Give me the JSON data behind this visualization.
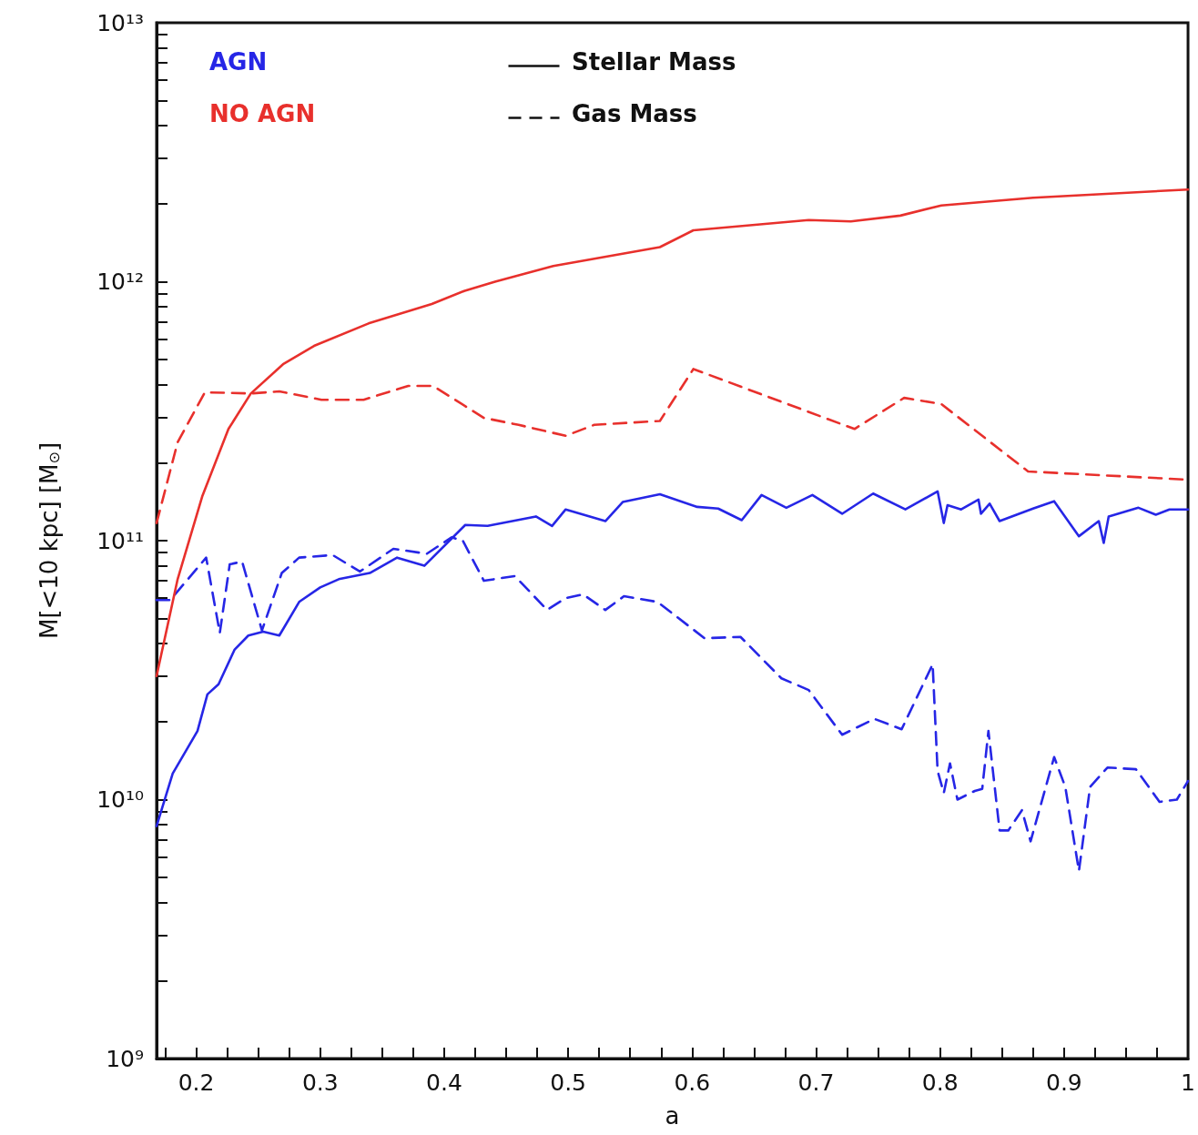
{
  "chart_data": {
    "type": "line",
    "xlabel": "a",
    "ylabel": "M[<10 kpc] [M$_{⊙}$]",
    "annotations": [
      "AGN",
      "NO AGN",
      "Stellar Mass",
      "Gas Mass"
    ],
    "log": "y",
    "grid": false,
    "marker": "none",
    "xlim": [
      0.168,
      1.0
    ],
    "xticks": [
      {
        "value": 0.175,
        "label": null
      },
      0.2,
      {
        "value": 0.225,
        "label": null
      },
      {
        "value": 0.25,
        "label": null
      },
      {
        "value": 0.275,
        "label": null
      },
      0.3,
      {
        "value": 0.325,
        "label": null
      },
      {
        "value": 0.35,
        "label": null
      },
      {
        "value": 0.375,
        "label": null
      },
      0.4,
      {
        "value": 0.425,
        "label": null
      },
      {
        "value": 0.45,
        "label": null
      },
      {
        "value": 0.475,
        "label": null
      },
      0.5,
      {
        "value": 0.525,
        "label": null
      },
      {
        "value": 0.55,
        "label": null
      },
      {
        "value": 0.575,
        "label": null
      },
      0.6,
      {
        "value": 0.625,
        "label": null
      },
      {
        "value": 0.65,
        "label": null
      },
      {
        "value": 0.675,
        "label": null
      },
      0.7,
      {
        "value": 0.725,
        "label": null
      },
      {
        "value": 0.75,
        "label": null
      },
      {
        "value": 0.775,
        "label": null
      },
      0.8,
      {
        "value": 0.825,
        "label": null
      },
      {
        "value": 0.85,
        "label": null
      },
      {
        "value": 0.875,
        "label": null
      },
      0.9,
      {
        "value": 0.925,
        "label": null
      },
      {
        "value": 0.95,
        "label": null
      },
      {
        "value": 0.975,
        "label": null
      },
      1
    ],
    "ylim": [
      1000000000.0,
      10000000000000.0
    ],
    "yticks": [
      {
        "value": 1000000000.0,
        "label": "10⁹"
      },
      {
        "value": 2000000000.0,
        "label": null
      },
      {
        "value": 3000000000.0,
        "label": null
      },
      {
        "value": 4000000000.0,
        "label": null
      },
      {
        "value": 5000000000.0,
        "label": null
      },
      {
        "value": 6000000000.0,
        "label": null
      },
      {
        "value": 7000000000.0,
        "label": null
      },
      {
        "value": 8000000000.0,
        "label": null
      },
      {
        "value": 9000000000.0,
        "label": null
      },
      {
        "value": 10000000000.0,
        "label": "10¹⁰"
      },
      {
        "value": 20000000000.0,
        "label": null
      },
      {
        "value": 30000000000.0,
        "label": null
      },
      {
        "value": 40000000000.0,
        "label": null
      },
      {
        "value": 50000000000.0,
        "label": null
      },
      {
        "value": 60000000000.0,
        "label": null
      },
      {
        "value": 70000000000.0,
        "label": null
      },
      {
        "value": 80000000000.0,
        "label": null
      },
      {
        "value": 90000000000.0,
        "label": null
      },
      {
        "value": 100000000000.0,
        "label": "10¹¹"
      },
      {
        "value": 200000000000.0,
        "label": null
      },
      {
        "value": 300000000000.0,
        "label": null
      },
      {
        "value": 400000000000.0,
        "label": null
      },
      {
        "value": 500000000000.0,
        "label": null
      },
      {
        "value": 600000000000.0,
        "label": null
      },
      {
        "value": 700000000000.0,
        "label": null
      },
      {
        "value": 800000000000.0,
        "label": null
      },
      {
        "value": 900000000000.0,
        "label": null
      },
      {
        "value": 1000000000000.0,
        "label": "10¹²"
      },
      {
        "value": 2000000000000.0,
        "label": null
      },
      {
        "value": 3000000000000.0,
        "label": null
      },
      {
        "value": 4000000000000.0,
        "label": null
      },
      {
        "value": 5000000000000.0,
        "label": null
      },
      {
        "value": 6000000000000.0,
        "label": null
      },
      {
        "value": 7000000000000.0,
        "label": null
      },
      {
        "value": 8000000000000.0,
        "label": null
      },
      {
        "value": 9000000000000.0,
        "label": null
      },
      {
        "value": 10000000000000.0,
        "label": "10¹³"
      }
    ],
    "series": [
      {
        "color": "#2626e6",
        "line_style": "solid",
        "x": [
          0.168,
          0.181,
          0.201,
          0.209,
          0.218,
          0.231,
          0.242,
          0.254,
          0.267,
          0.283,
          0.3,
          0.315,
          0.34,
          0.362,
          0.384,
          0.417,
          0.435,
          0.474,
          0.487,
          0.498,
          0.53,
          0.544,
          0.574,
          0.604,
          0.621,
          0.64,
          0.656,
          0.676,
          0.697,
          0.721,
          0.746,
          0.772,
          0.798,
          0.803,
          0.806,
          0.817,
          0.831,
          0.833,
          0.84,
          0.848,
          0.875,
          0.892,
          0.912,
          0.928,
          0.932,
          0.936,
          0.96,
          0.974,
          0.985,
          1.0
        ],
        "values": [
          7900000000.0,
          12600000000.0,
          18400000000.0,
          25500000000.0,
          27900000000.0,
          38000000000.0,
          43000000000.0,
          44500000000.0,
          43000000000.0,
          58000000000.0,
          66000000000.0,
          71000000000.0,
          75000000000.0,
          86000000000.0,
          80000000000.0,
          115000000000.0,
          114000000000.0,
          124000000000.0,
          114000000000.0,
          132000000000.0,
          119000000000.0,
          141000000000.0,
          151000000000.0,
          135000000000.0,
          133000000000.0,
          120000000000.0,
          150000000000.0,
          134000000000.0,
          150000000000.0,
          127000000000.0,
          152000000000.0,
          132000000000.0,
          155000000000.0,
          117000000000.0,
          137000000000.0,
          132000000000.0,
          144000000000.0,
          127000000000.0,
          139000000000.0,
          119000000000.0,
          133000000000.0,
          142000000000.0,
          104000000000.0,
          119000000000.0,
          98000000000.0,
          124000000000.0,
          134000000000.0,
          126000000000.0,
          132000000000.0,
          132000000000.0
        ]
      },
      {
        "color": "#2626e6",
        "line_style": "dashed",
        "x": [
          0.168,
          0.179,
          0.208,
          0.219,
          0.227,
          0.237,
          0.253,
          0.269,
          0.283,
          0.31,
          0.332,
          0.359,
          0.386,
          0.406,
          0.415,
          0.432,
          0.457,
          0.483,
          0.498,
          0.512,
          0.53,
          0.545,
          0.572,
          0.61,
          0.639,
          0.672,
          0.694,
          0.721,
          0.747,
          0.769,
          0.794,
          0.798,
          0.803,
          0.808,
          0.814,
          0.828,
          0.834,
          0.839,
          0.848,
          0.855,
          0.866,
          0.873,
          0.892,
          0.901,
          0.912,
          0.921,
          0.935,
          0.958,
          0.977,
          0.991,
          1.0
        ],
        "values": [
          59000000000.0,
          59000000000.0,
          86000000000.0,
          44000000000.0,
          81000000000.0,
          83000000000.0,
          45000000000.0,
          75000000000.0,
          86000000000.0,
          88000000000.0,
          76000000000.0,
          93000000000.0,
          89000000000.0,
          103000000000.0,
          100000000000.0,
          70000000000.0,
          73000000000.0,
          54000000000.0,
          60000000000.0,
          62000000000.0,
          54000000000.0,
          61000000000.0,
          58000000000.0,
          42000000000.0,
          42500000000.0,
          29400000000.0,
          26500000000.0,
          17800000000.0,
          20500000000.0,
          18700000000.0,
          33300000000.0,
          12900000000.0,
          10600000000.0,
          13800000000.0,
          10000000000.0,
          10800000000.0,
          11000000000.0,
          18400000000.0,
          7600000000.0,
          7600000000.0,
          9100000000.0,
          6900000000.0,
          14600000000.0,
          11200000000.0,
          5300000000.0,
          11200000000.0,
          13300000000.0,
          13100000000.0,
          9800000000.0,
          10000000000.0,
          11800000000.0
        ]
      },
      {
        "color": "#e8302c",
        "line_style": "solid",
        "x": [
          0.168,
          0.185,
          0.205,
          0.226,
          0.244,
          0.27,
          0.295,
          0.339,
          0.39,
          0.416,
          0.441,
          0.488,
          0.574,
          0.601,
          0.694,
          0.728,
          0.768,
          0.801,
          0.875,
          1.0
        ],
        "values": [
          30000000000.0,
          71000000000.0,
          149000000000.0,
          270000000000.0,
          370000000000.0,
          480000000000.0,
          565000000000.0,
          690000000000.0,
          820000000000.0,
          920000000000.0,
          1000000000000.0,
          1150000000000.0,
          1360000000000.0,
          1580000000000.0,
          1730000000000.0,
          1710000000000.0,
          1800000000000.0,
          1970000000000.0,
          2110000000000.0,
          2270000000000.0
        ]
      },
      {
        "color": "#e8302c",
        "line_style": "dashed",
        "x": [
          0.168,
          0.185,
          0.207,
          0.244,
          0.267,
          0.301,
          0.335,
          0.371,
          0.391,
          0.432,
          0.46,
          0.498,
          0.521,
          0.574,
          0.601,
          0.731,
          0.771,
          0.801,
          0.871,
          1.0
        ],
        "values": [
          117000000000.0,
          240000000000.0,
          374000000000.0,
          370000000000.0,
          377000000000.0,
          350000000000.0,
          350000000000.0,
          396000000000.0,
          396000000000.0,
          298000000000.0,
          280000000000.0,
          254000000000.0,
          280000000000.0,
          290000000000.0,
          460000000000.0,
          270000000000.0,
          356000000000.0,
          337000000000.0,
          185000000000.0,
          172000000000.0
        ]
      }
    ]
  }
}
